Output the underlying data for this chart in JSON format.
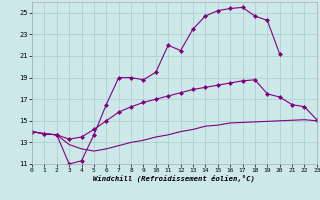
{
  "xlabel": "Windchill (Refroidissement éolien,°C)",
  "background_color": "#cce8e8",
  "grid_color": "#aacccc",
  "line_color": "#800080",
  "xmin": 0,
  "xmax": 23,
  "ymin": 11,
  "ymax": 26,
  "yticks": [
    11,
    13,
    15,
    17,
    19,
    21,
    23,
    25
  ],
  "xticks": [
    0,
    1,
    2,
    3,
    4,
    5,
    6,
    7,
    8,
    9,
    10,
    11,
    12,
    13,
    14,
    15,
    16,
    17,
    18,
    19,
    20,
    21,
    22,
    23
  ],
  "curve1_x": [
    0,
    1,
    2,
    3,
    4,
    5,
    6,
    7,
    8,
    9,
    10,
    11,
    12,
    13,
    14,
    15,
    16,
    17,
    18,
    19,
    20
  ],
  "curve1_y": [
    14.0,
    13.8,
    13.7,
    11.0,
    11.3,
    13.7,
    16.5,
    19.0,
    19.0,
    18.8,
    19.5,
    22.0,
    21.5,
    23.5,
    24.7,
    25.2,
    25.4,
    25.5,
    24.7,
    24.3,
    21.2
  ],
  "curve2_x": [
    0,
    1,
    2,
    3,
    4,
    5,
    6,
    7,
    8,
    9,
    10,
    11,
    12,
    13,
    14,
    15,
    16,
    17,
    18,
    19,
    20,
    21,
    22,
    23
  ],
  "curve2_y": [
    14.0,
    13.8,
    13.7,
    13.3,
    13.5,
    14.2,
    15.0,
    15.8,
    16.3,
    16.7,
    17.0,
    17.3,
    17.6,
    17.9,
    18.1,
    18.3,
    18.5,
    18.7,
    18.8,
    17.5,
    17.2,
    16.5,
    16.3,
    15.1
  ],
  "curve3_x": [
    0,
    1,
    2,
    3,
    4,
    5,
    6,
    7,
    8,
    9,
    10,
    11,
    12,
    13,
    14,
    15,
    16,
    17,
    18,
    19,
    20,
    21,
    22,
    23
  ],
  "curve3_y": [
    14.0,
    13.8,
    13.7,
    12.8,
    12.4,
    12.2,
    12.4,
    12.7,
    13.0,
    13.2,
    13.5,
    13.7,
    14.0,
    14.2,
    14.5,
    14.6,
    14.8,
    14.85,
    14.9,
    14.95,
    15.0,
    15.05,
    15.1,
    15.0
  ]
}
